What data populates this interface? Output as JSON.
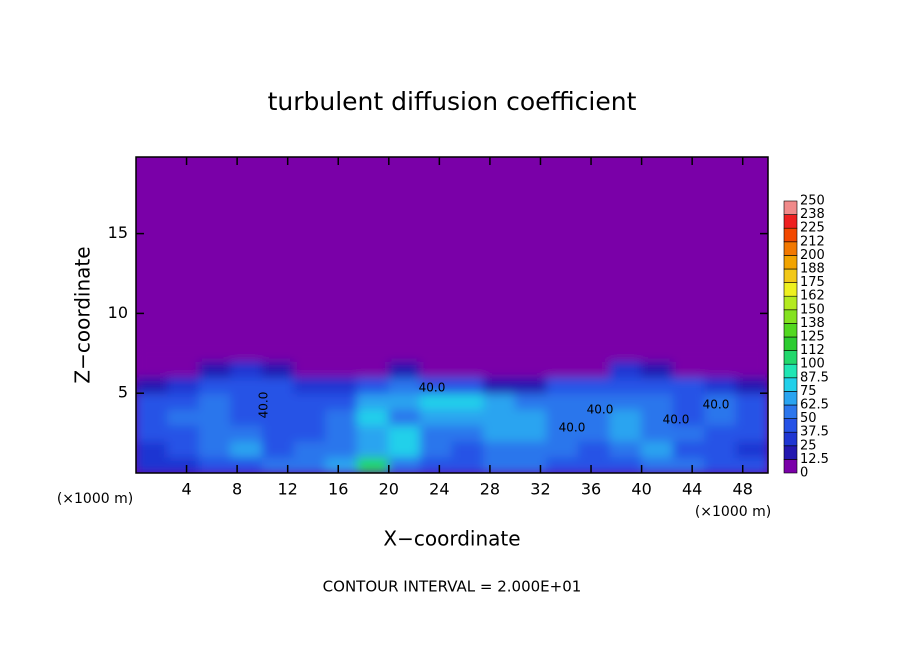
{
  "chart_data": {
    "type": "heatmap",
    "title": "turbulent diffusion coefficient",
    "x_label": "X−coordinate",
    "y_label": "Z−coordinate",
    "x_unit": "(×1000 m)",
    "y_unit": "(×1000 m)",
    "footnote": "CONTOUR INTERVAL = 2.000E+01",
    "xlim": [
      0,
      50
    ],
    "ylim": [
      0,
      19.8
    ],
    "xticks": [
      4,
      8,
      12,
      16,
      20,
      24,
      28,
      32,
      36,
      40,
      44,
      48
    ],
    "yticks": [
      5,
      10,
      15
    ],
    "background_color": "#7a00a8",
    "x_edges": [
      0,
      2.5,
      5,
      7.5,
      10,
      12.5,
      15,
      17.5,
      20,
      22.5,
      25,
      27.5,
      30,
      32.5,
      35,
      37.5,
      40,
      42.5,
      45,
      47.5,
      50
    ],
    "z_edges": [
      0,
      1,
      2,
      3,
      4,
      5,
      6,
      7,
      8
    ],
    "values": [
      [
        30,
        35,
        40,
        45,
        50,
        55,
        70,
        110,
        60,
        40,
        45,
        50,
        55,
        45,
        40,
        40,
        60,
        50,
        45,
        40
      ],
      [
        35,
        40,
        55,
        70,
        45,
        50,
        60,
        65,
        75,
        50,
        45,
        55,
        60,
        55,
        45,
        55,
        70,
        45,
        40,
        35
      ],
      [
        40,
        45,
        60,
        50,
        45,
        40,
        55,
        70,
        75,
        60,
        50,
        70,
        65,
        60,
        50,
        65,
        60,
        50,
        45,
        40
      ],
      [
        45,
        50,
        55,
        45,
        40,
        45,
        50,
        75,
        55,
        65,
        70,
        70,
        70,
        55,
        55,
        70,
        55,
        45,
        50,
        40
      ],
      [
        40,
        45,
        55,
        40,
        45,
        40,
        40,
        65,
        70,
        75,
        80,
        70,
        55,
        60,
        55,
        60,
        50,
        45,
        55,
        45
      ],
      [
        20,
        35,
        40,
        45,
        40,
        30,
        35,
        40,
        50,
        45,
        40,
        20,
        15,
        40,
        45,
        45,
        45,
        40,
        30,
        20
      ],
      [
        0,
        0,
        15,
        30,
        20,
        10,
        5,
        10,
        15,
        10,
        5,
        0,
        0,
        0,
        10,
        30,
        20,
        10,
        0,
        0
      ],
      [
        0,
        0,
        0,
        10,
        0,
        0,
        0,
        0,
        0,
        0,
        0,
        0,
        0,
        0,
        0,
        0,
        0,
        0,
        0,
        0
      ]
    ],
    "contour_labels": [
      "40.0",
      "40.0",
      "40.0",
      "40.0",
      "40.0",
      "40.0"
    ],
    "colorbar": {
      "levels": [
        0,
        12.5,
        25,
        37.5,
        50,
        62.5,
        75,
        87.5,
        100,
        112,
        125,
        138,
        150,
        162,
        175,
        188,
        200,
        212,
        225,
        238,
        250
      ],
      "colors": [
        "#7a00a8",
        "#2418b0",
        "#1f36d2",
        "#2552e6",
        "#2c76ec",
        "#2aa4f0",
        "#22d0ea",
        "#20e6b4",
        "#22d86c",
        "#2ccc30",
        "#52d820",
        "#84e220",
        "#b4ea20",
        "#eef020",
        "#f2c818",
        "#f2a400",
        "#f27800",
        "#f24800",
        "#ee2020",
        "#f08a8a"
      ]
    }
  }
}
